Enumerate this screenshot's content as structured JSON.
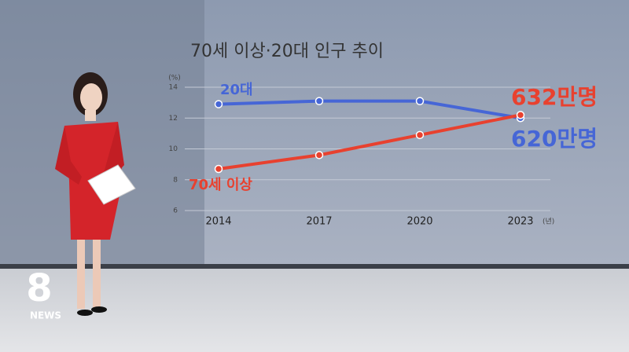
{
  "chart_data": {
    "type": "line",
    "title": "70세 이상·20대 인구 추이",
    "categories": [
      "2014",
      "2017",
      "2020",
      "2023"
    ],
    "series": [
      {
        "name": "20대",
        "color": "#4666d6",
        "values": [
          12.9,
          13.1,
          13.1,
          12.0
        ]
      },
      {
        "name": "70세 이상",
        "color": "#e8412f",
        "values": [
          8.7,
          9.6,
          10.9,
          12.2
        ]
      }
    ],
    "ylim": [
      6,
      14
    ],
    "yticks": [
      6,
      8,
      10,
      12,
      14
    ],
    "grid": true,
    "y_unit": "(%)",
    "x_unit": "(년)",
    "annotations": [
      {
        "text": "632만명",
        "color": "#e8412f"
      },
      {
        "text": "620만명",
        "color": "#4666d6"
      }
    ]
  },
  "broadcast": {
    "logo_number": "8",
    "logo_text": "NEWS"
  }
}
